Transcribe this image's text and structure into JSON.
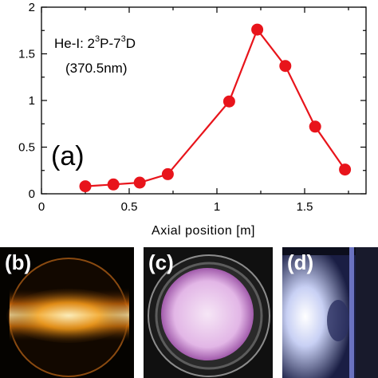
{
  "chart_data": {
    "type": "line",
    "x": [
      0.25,
      0.41,
      0.56,
      0.72,
      1.07,
      1.23,
      1.39,
      1.56,
      1.73
    ],
    "series": [
      {
        "values": [
          0.08,
          0.1,
          0.12,
          0.21,
          0.99,
          1.76,
          1.37,
          0.72,
          0.26
        ],
        "color": "#e8141b"
      }
    ],
    "xlabel": "Axial position [m]",
    "ylabel": "",
    "xlim": [
      0,
      1.85
    ],
    "ylim": [
      0,
      2
    ],
    "xticks": [
      0,
      0.5,
      1,
      1.5
    ],
    "xtick_labels": [
      "0",
      "0.5",
      "1",
      "1.5"
    ],
    "yticks": [
      0,
      0.5,
      1,
      1.5,
      2
    ],
    "ytick_labels": [
      "0",
      "0.5",
      "1",
      "1.5",
      "2"
    ],
    "grid": false,
    "annotation": {
      "species": "He-I: 2",
      "sup1": "3",
      "mid": "P-7",
      "sup2": "3",
      "end": "D",
      "wavelength": "(370.5nm)"
    },
    "panel_label": "(a)"
  },
  "photos": [
    {
      "label": "(b)",
      "colors": {
        "glow": "#f4a418",
        "core": "#fff0c8",
        "rim": "#c86a10"
      }
    },
    {
      "label": "(c)",
      "colors": {
        "glow": "#f2d8f4",
        "edge": "#b26ab8",
        "ring": "#9a9a9a"
      }
    },
    {
      "label": "(d)",
      "colors": {
        "glow": "#f0f2ff",
        "edge": "#5a62a8",
        "window": "#3a4080"
      }
    }
  ]
}
